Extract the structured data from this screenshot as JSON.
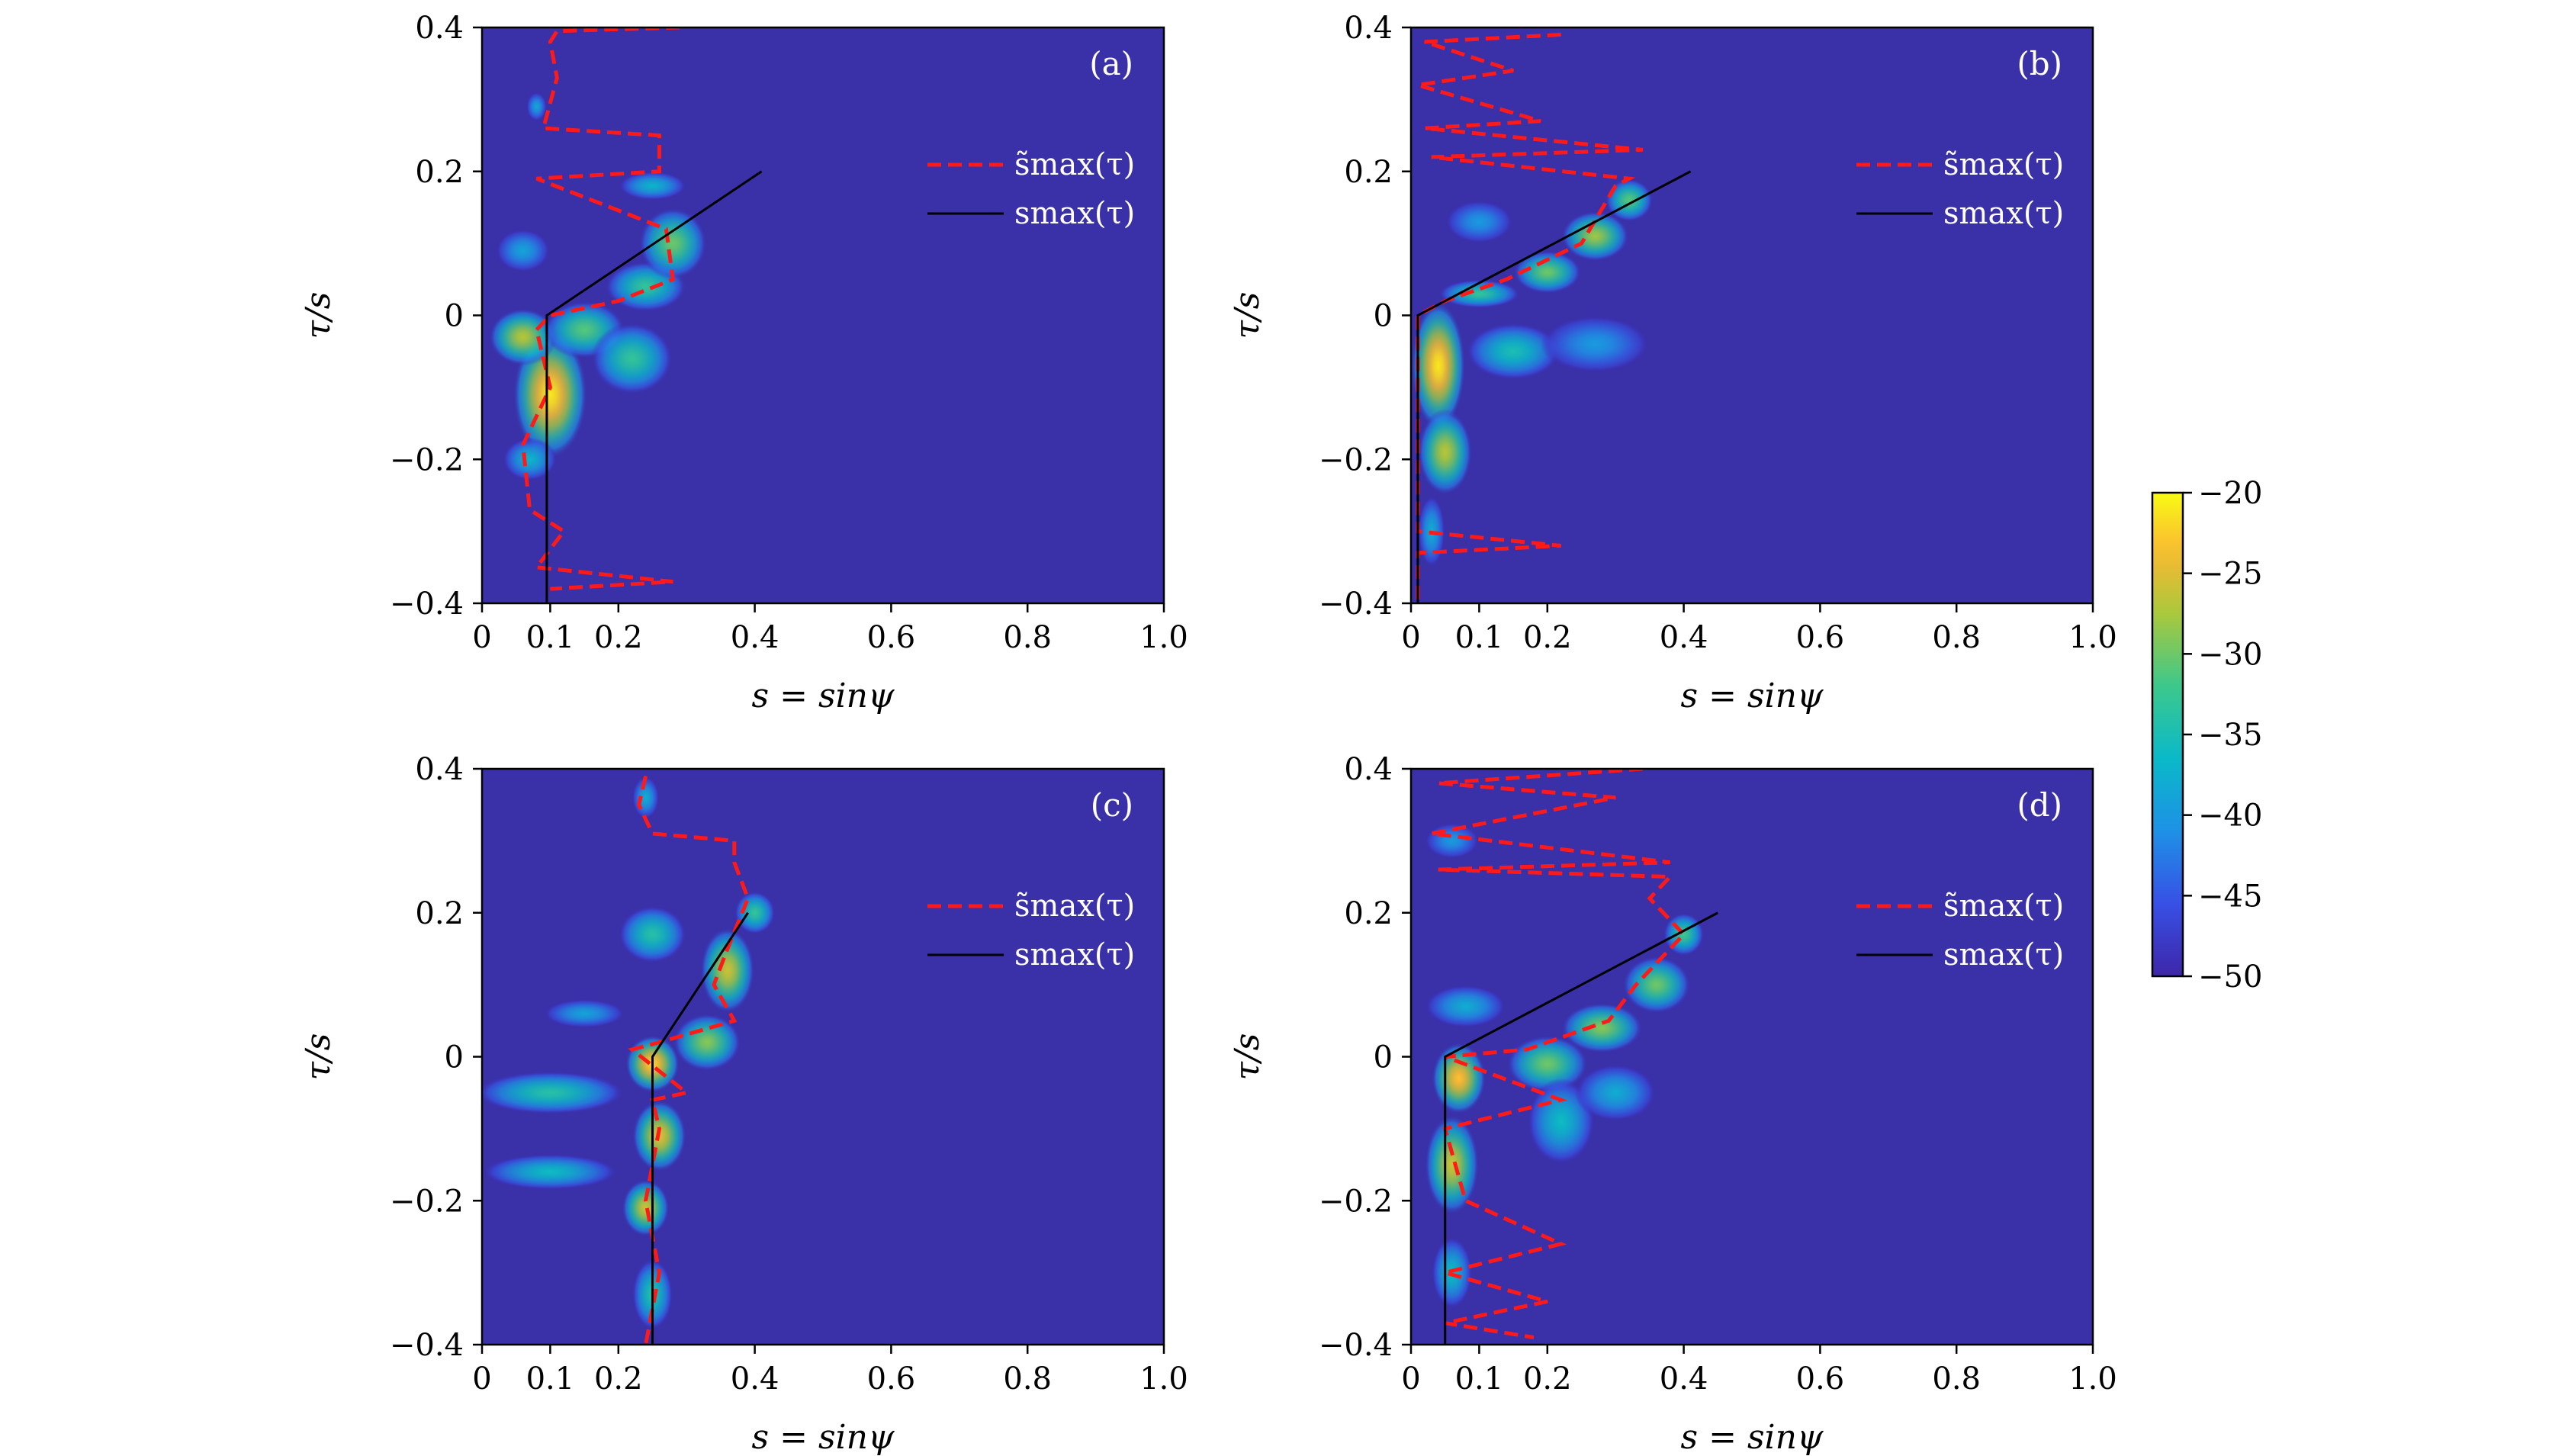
{
  "chart_data": [
    {
      "type": "heatmap",
      "panel_label": "(a)",
      "xlabel": "s = sinψ",
      "ylabel": "τ/s",
      "xlim": [
        0,
        1.0
      ],
      "ylim": [
        -0.4,
        0.4
      ],
      "xticks": [
        "0",
        "0.1",
        "0.2",
        "0.4",
        "0.6",
        "0.8",
        "1.0"
      ],
      "xtick_values": [
        0,
        0.1,
        0.2,
        0.4,
        0.6,
        0.8,
        1.0
      ],
      "yticks": [
        "−0.4",
        "−0.2",
        "0",
        "0.2",
        "0.4"
      ],
      "ytick_values": [
        -0.4,
        -0.2,
        0,
        0.2,
        0.4
      ],
      "legend": [
        "s̃max(τ)",
        "smax(τ)"
      ],
      "legend_position": "top-right",
      "blobs": [
        {
          "s": 0.1,
          "tau": -0.11,
          "rs": 0.055,
          "rt": 0.09,
          "level": -21
        },
        {
          "s": 0.06,
          "tau": -0.03,
          "rs": 0.05,
          "rt": 0.04,
          "level": -27
        },
        {
          "s": 0.15,
          "tau": -0.02,
          "rs": 0.06,
          "rt": 0.04,
          "level": -31
        },
        {
          "s": 0.22,
          "tau": -0.06,
          "rs": 0.06,
          "rt": 0.05,
          "level": -33
        },
        {
          "s": 0.24,
          "tau": 0.04,
          "rs": 0.06,
          "rt": 0.035,
          "level": -33
        },
        {
          "s": 0.28,
          "tau": 0.1,
          "rs": 0.05,
          "rt": 0.05,
          "level": -30
        },
        {
          "s": 0.25,
          "tau": 0.18,
          "rs": 0.05,
          "rt": 0.02,
          "level": -37
        },
        {
          "s": 0.06,
          "tau": 0.09,
          "rs": 0.04,
          "rt": 0.03,
          "level": -39
        },
        {
          "s": 0.07,
          "tau": -0.2,
          "rs": 0.04,
          "rt": 0.03,
          "level": -37
        },
        {
          "s": 0.08,
          "tau": 0.29,
          "rs": 0.015,
          "rt": 0.02,
          "level": -39
        }
      ],
      "s_max": {
        "tau": [
          -0.4,
          0,
          0.2
        ],
        "s": [
          0.095,
          0.095,
          0.41
        ]
      },
      "s_tilde_max": {
        "tau": [
          0.4,
          0.395,
          0.38,
          0.33,
          0.26,
          0.25,
          0.2,
          0.19,
          0.12,
          0.05,
          0.02,
          0.0,
          -0.02,
          -0.1,
          -0.18,
          -0.27,
          -0.3,
          -0.35,
          -0.37,
          -0.38
        ],
        "s": [
          0.29,
          0.11,
          0.1,
          0.11,
          0.09,
          0.26,
          0.26,
          0.08,
          0.27,
          0.28,
          0.2,
          0.1,
          0.08,
          0.1,
          0.06,
          0.07,
          0.12,
          0.08,
          0.28,
          0.1
        ]
      }
    },
    {
      "type": "heatmap",
      "panel_label": "(b)",
      "xlabel": "s = sinψ",
      "ylabel": "τ/s",
      "xlim": [
        0,
        1.0
      ],
      "ylim": [
        -0.4,
        0.4
      ],
      "xticks": [
        "0",
        "0.1",
        "0.2",
        "0.4",
        "0.6",
        "0.8",
        "1.0"
      ],
      "xtick_values": [
        0,
        0.1,
        0.2,
        0.4,
        0.6,
        0.8,
        1.0
      ],
      "yticks": [
        "−0.4",
        "−0.2",
        "0",
        "0.2",
        "0.4"
      ],
      "ytick_values": [
        -0.4,
        -0.2,
        0,
        0.2,
        0.4
      ],
      "legend": [
        "s̃max(τ)",
        "smax(τ)"
      ],
      "legend_position": "top-right",
      "blobs": [
        {
          "s": 0.04,
          "tau": -0.07,
          "rs": 0.04,
          "rt": 0.09,
          "level": -21
        },
        {
          "s": 0.05,
          "tau": -0.19,
          "rs": 0.04,
          "rt": 0.06,
          "level": -27
        },
        {
          "s": 0.1,
          "tau": 0.03,
          "rs": 0.06,
          "rt": 0.02,
          "level": -33
        },
        {
          "s": 0.2,
          "tau": 0.06,
          "rs": 0.05,
          "rt": 0.03,
          "level": -30
        },
        {
          "s": 0.27,
          "tau": 0.11,
          "rs": 0.05,
          "rt": 0.035,
          "level": -28
        },
        {
          "s": 0.32,
          "tau": 0.16,
          "rs": 0.035,
          "rt": 0.03,
          "level": -31
        },
        {
          "s": 0.15,
          "tau": -0.05,
          "rs": 0.07,
          "rt": 0.04,
          "level": -35
        },
        {
          "s": 0.27,
          "tau": -0.04,
          "rs": 0.08,
          "rt": 0.04,
          "level": -40
        },
        {
          "s": 0.1,
          "tau": 0.13,
          "rs": 0.05,
          "rt": 0.03,
          "level": -40
        },
        {
          "s": 0.03,
          "tau": -0.3,
          "rs": 0.02,
          "rt": 0.05,
          "level": -38
        }
      ],
      "s_max": {
        "tau": [
          -0.4,
          0,
          0.2
        ],
        "s": [
          0.01,
          0.01,
          0.41
        ]
      },
      "s_tilde_max": {
        "tau": [
          0.39,
          0.38,
          0.34,
          0.32,
          0.27,
          0.26,
          0.23,
          0.22,
          0.19,
          0.18,
          0.1,
          0.05,
          0.02,
          0.0,
          -0.2,
          -0.3,
          -0.32,
          -0.33,
          -0.4
        ],
        "s": [
          0.22,
          0.02,
          0.15,
          0.01,
          0.19,
          0.02,
          0.34,
          0.03,
          0.32,
          0.3,
          0.25,
          0.14,
          0.05,
          0.01,
          0.01,
          0.01,
          0.22,
          0.01,
          0.01
        ]
      }
    },
    {
      "type": "heatmap",
      "panel_label": "(c)",
      "xlabel": "s = sinψ",
      "ylabel": "τ/s",
      "xlim": [
        0,
        1.0
      ],
      "ylim": [
        -0.4,
        0.4
      ],
      "xticks": [
        "0",
        "0.1",
        "0.2",
        "0.4",
        "0.6",
        "0.8",
        "1.0"
      ],
      "xtick_values": [
        0,
        0.1,
        0.2,
        0.4,
        0.6,
        0.8,
        1.0
      ],
      "yticks": [
        "−0.4",
        "−0.2",
        "0",
        "0.2",
        "0.4"
      ],
      "yticks_values_note": "",
      "ytick_values": [
        -0.4,
        -0.2,
        0,
        0.2,
        0.4
      ],
      "legend": [
        "s̃max(τ)",
        "smax(τ)"
      ],
      "legend_position": "top-right",
      "blobs": [
        {
          "s": 0.25,
          "tau": -0.01,
          "rs": 0.04,
          "rt": 0.04,
          "level": -22
        },
        {
          "s": 0.26,
          "tau": -0.11,
          "rs": 0.04,
          "rt": 0.05,
          "level": -25
        },
        {
          "s": 0.24,
          "tau": -0.21,
          "rs": 0.035,
          "rt": 0.04,
          "level": -26
        },
        {
          "s": 0.36,
          "tau": 0.12,
          "rs": 0.04,
          "rt": 0.06,
          "level": -26
        },
        {
          "s": 0.33,
          "tau": 0.02,
          "rs": 0.05,
          "rt": 0.04,
          "level": -29
        },
        {
          "s": 0.1,
          "tau": -0.05,
          "rs": 0.11,
          "rt": 0.03,
          "level": -34
        },
        {
          "s": 0.1,
          "tau": -0.16,
          "rs": 0.1,
          "rt": 0.025,
          "level": -36
        },
        {
          "s": 0.15,
          "tau": 0.06,
          "rs": 0.06,
          "rt": 0.02,
          "level": -39
        },
        {
          "s": 0.25,
          "tau": 0.17,
          "rs": 0.05,
          "rt": 0.04,
          "level": -34
        },
        {
          "s": 0.25,
          "tau": -0.33,
          "rs": 0.03,
          "rt": 0.05,
          "level": -34
        },
        {
          "s": 0.4,
          "tau": 0.2,
          "rs": 0.03,
          "rt": 0.03,
          "level": -33
        },
        {
          "s": 0.24,
          "tau": 0.36,
          "rs": 0.02,
          "rt": 0.03,
          "level": -38
        }
      ],
      "s_max": {
        "tau": [
          -0.4,
          0,
          0.2
        ],
        "s": [
          0.25,
          0.25,
          0.39
        ]
      },
      "s_tilde_max": {
        "tau": [
          0.39,
          0.35,
          0.31,
          0.3,
          0.27,
          0.22,
          0.15,
          0.1,
          0.05,
          0.02,
          0.01,
          -0.05,
          -0.06,
          -0.1,
          -0.2,
          -0.3,
          -0.4
        ],
        "s": [
          0.24,
          0.23,
          0.25,
          0.37,
          0.37,
          0.39,
          0.36,
          0.34,
          0.37,
          0.26,
          0.22,
          0.3,
          0.25,
          0.26,
          0.24,
          0.26,
          0.24
        ]
      }
    },
    {
      "type": "heatmap",
      "panel_label": "(d)",
      "xlabel": "s = sinψ",
      "ylabel": "τ/s",
      "xlim": [
        0,
        1.0
      ],
      "ylim": [
        -0.4,
        0.4
      ],
      "xticks": [
        "0",
        "0.1",
        "0.2",
        "0.4",
        "0.6",
        "0.8",
        "1.0"
      ],
      "xtick_values": [
        0,
        0.1,
        0.2,
        0.4,
        0.6,
        0.8,
        1.0
      ],
      "yticks": [
        "−0.4",
        "−0.2",
        "0",
        "0.2",
        "0.4"
      ],
      "ytick_values": [
        -0.4,
        -0.2,
        0,
        0.2,
        0.4
      ],
      "legend": [
        "s̃max(τ)",
        "smax(τ)"
      ],
      "legend_position": "top-right",
      "blobs": [
        {
          "s": 0.07,
          "tau": -0.03,
          "rs": 0.04,
          "rt": 0.05,
          "level": -23
        },
        {
          "s": 0.06,
          "tau": -0.15,
          "rs": 0.04,
          "rt": 0.07,
          "level": -26
        },
        {
          "s": 0.2,
          "tau": -0.01,
          "rs": 0.06,
          "rt": 0.04,
          "level": -30
        },
        {
          "s": 0.28,
          "tau": 0.04,
          "rs": 0.06,
          "rt": 0.035,
          "level": -29
        },
        {
          "s": 0.36,
          "tau": 0.1,
          "rs": 0.05,
          "rt": 0.04,
          "level": -30
        },
        {
          "s": 0.4,
          "tau": 0.17,
          "rs": 0.03,
          "rt": 0.03,
          "level": -32
        },
        {
          "s": 0.22,
          "tau": -0.09,
          "rs": 0.05,
          "rt": 0.06,
          "level": -36
        },
        {
          "s": 0.3,
          "tau": -0.05,
          "rs": 0.06,
          "rt": 0.04,
          "level": -38
        },
        {
          "s": 0.08,
          "tau": 0.07,
          "rs": 0.06,
          "rt": 0.03,
          "level": -38
        },
        {
          "s": 0.06,
          "tau": -0.3,
          "rs": 0.03,
          "rt": 0.05,
          "level": -36
        },
        {
          "s": 0.06,
          "tau": 0.3,
          "rs": 0.04,
          "rt": 0.025,
          "level": -40
        }
      ],
      "s_max": {
        "tau": [
          -0.4,
          0,
          0.2
        ],
        "s": [
          0.05,
          0.05,
          0.45
        ]
      },
      "s_tilde_max": {
        "tau": [
          0.4,
          0.38,
          0.36,
          0.31,
          0.27,
          0.26,
          0.25,
          0.22,
          0.17,
          0.1,
          0.05,
          0.01,
          0.0,
          -0.06,
          -0.1,
          -0.2,
          -0.26,
          -0.3,
          -0.34,
          -0.37,
          -0.39
        ],
        "s": [
          0.34,
          0.04,
          0.3,
          0.03,
          0.38,
          0.04,
          0.38,
          0.35,
          0.4,
          0.33,
          0.29,
          0.17,
          0.05,
          0.22,
          0.05,
          0.08,
          0.22,
          0.05,
          0.2,
          0.05,
          0.18
        ]
      }
    }
  ],
  "colorbar": {
    "ticks": [
      "−20",
      "−25",
      "−30",
      "−35",
      "−40",
      "−45",
      "−50"
    ],
    "tick_values": [
      -20,
      -25,
      -30,
      -35,
      -40,
      -45,
      -50
    ],
    "range": [
      -50,
      -20
    ],
    "colormap": "parula"
  },
  "colors": {
    "background": "#3a30a8",
    "s_tilde_line": "#ff1a1a",
    "s_max_line": "#000000"
  }
}
